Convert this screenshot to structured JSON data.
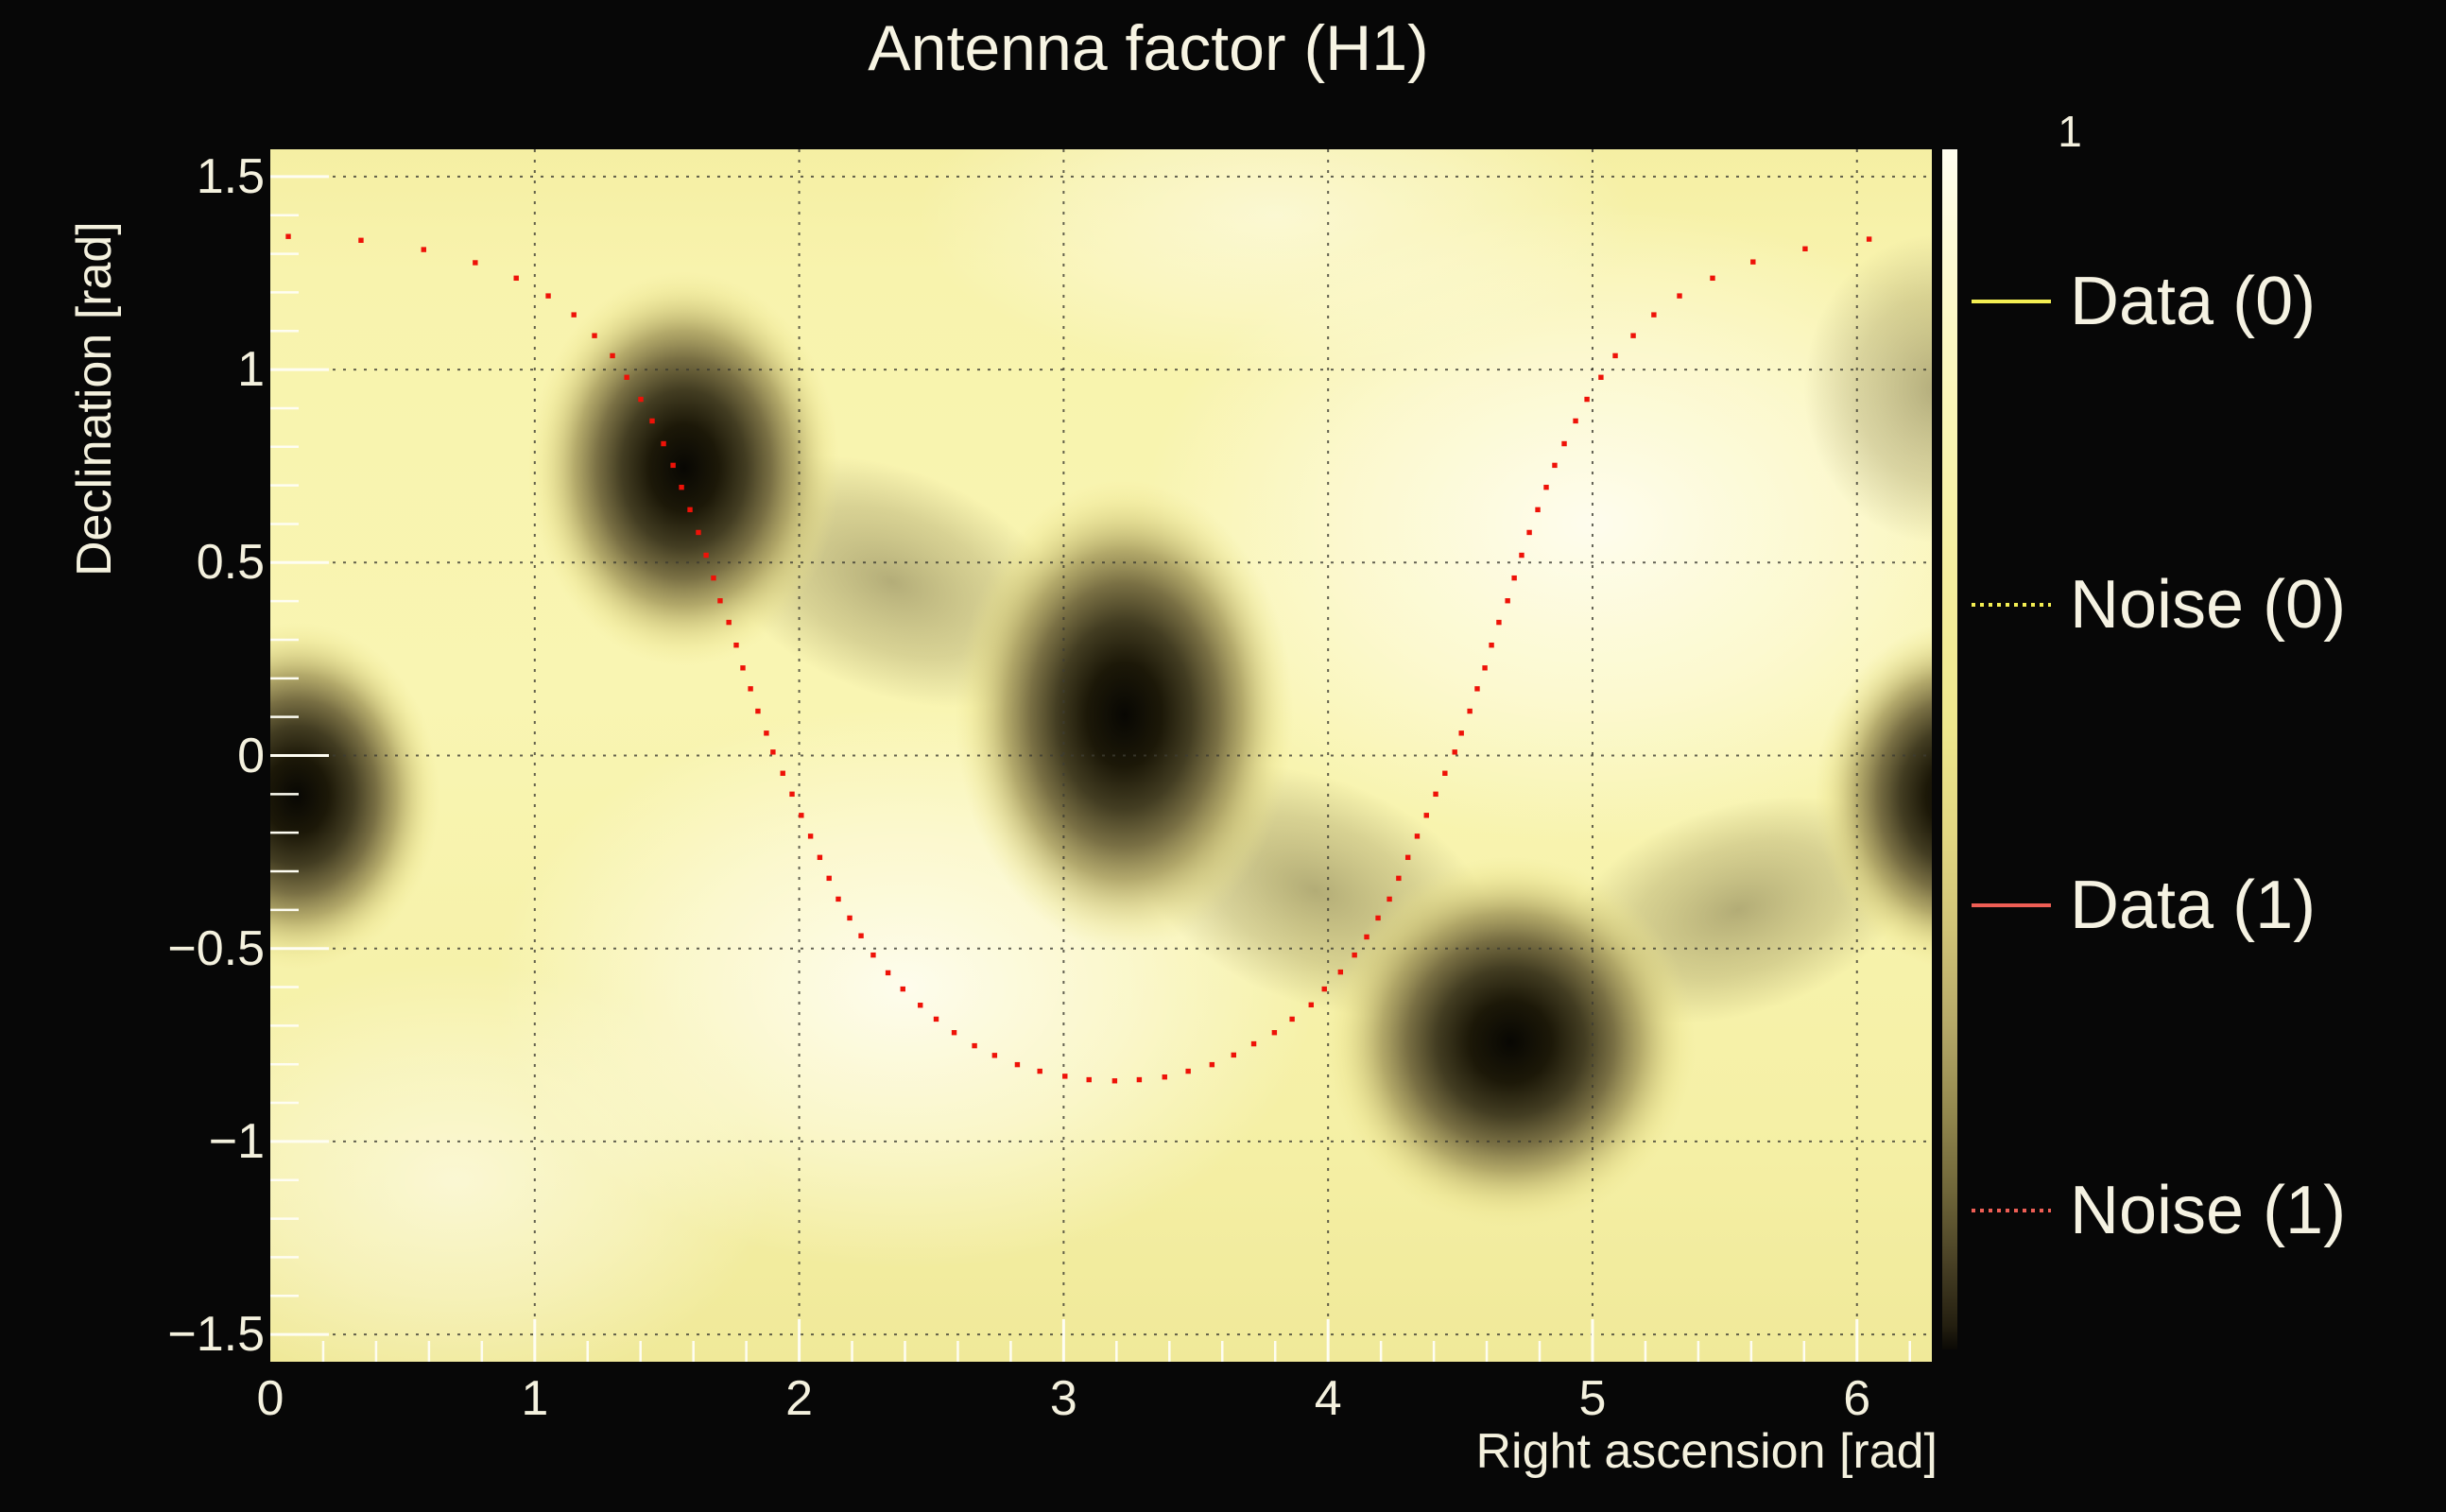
{
  "title": "Antenna factor (H1)",
  "colors": {
    "background": "#070707",
    "text": "#f4f1de",
    "data0_line": "#f3ee52",
    "data1_line": "#ee5e55",
    "noise1_points": "#ee1208",
    "gridline": "#3d3c32",
    "tick_marks": "#fefdf2",
    "heat_high": "#fffdf0",
    "heat_low": "#0b0905"
  },
  "legend": {
    "entries": [
      {
        "label": "Data (0)",
        "color": "#f3ee52",
        "style": "solid"
      },
      {
        "label": "Noise (0)",
        "color": "#f3ee52",
        "style": "dotted"
      },
      {
        "label": "Data (1)",
        "color": "#ee5e55",
        "style": "solid"
      },
      {
        "label": "Noise (1)",
        "color": "#ee5e55",
        "style": "dotted"
      }
    ]
  },
  "chart_data": {
    "type": "heatmap",
    "title": "Antenna factor (H1)",
    "xlabel": "Right ascension [rad]",
    "ylabel": "Declination [rad]",
    "xlim": [
      0,
      6.2832
    ],
    "ylim": [
      -1.5708,
      1.5708
    ],
    "x_ticks": [
      0,
      1,
      2,
      3,
      4,
      5,
      6
    ],
    "y_ticks": [
      1.5,
      1,
      0.5,
      0,
      -0.5,
      -1,
      -1.5
    ],
    "x_minor_step": 0.2,
    "y_minor_step": 0.1,
    "grid": true,
    "legend_position": "right",
    "z_max_label": "1",
    "colormap_description": "antenna factor: 1 = cream white, 0 = black",
    "minima_blobs": [
      {
        "ra": 0.1,
        "dec": -0.105,
        "rx": 0.54,
        "ry": 0.45
      },
      {
        "ra": 1.565,
        "dec": 0.744,
        "rx": 0.59,
        "ry": 0.51
      },
      {
        "ra": 3.23,
        "dec": 0.105,
        "rx": 0.64,
        "ry": 0.61
      },
      {
        "ra": 4.69,
        "dec": -0.742,
        "rx": 0.7,
        "ry": 0.48
      },
      {
        "ra": 6.38,
        "dec": -0.105,
        "rx": 0.54,
        "ry": 0.45
      }
    ],
    "bright_maxima": [
      {
        "ra": 2.4,
        "dec": -0.6,
        "rx": 1.55,
        "ry": 0.73,
        "op": 0.9
      },
      {
        "ra": 5.0,
        "dec": 0.6,
        "rx": 1.7,
        "ry": 0.83,
        "op": 0.9
      },
      {
        "ra": 0.7,
        "dec": -1.1,
        "rx": 1.2,
        "ry": 0.56,
        "op": 0.6
      },
      {
        "ra": 3.8,
        "dec": 1.4,
        "rx": 1.35,
        "ry": 0.42,
        "op": 0.55
      }
    ],
    "dark_bridges": [
      {
        "ra": 2.35,
        "dec": 0.45,
        "rx": 0.72,
        "ry": 0.29,
        "rot": 22
      },
      {
        "ra": 3.95,
        "dec": -0.35,
        "rx": 0.72,
        "ry": 0.29,
        "rot": 22
      },
      {
        "ra": 5.55,
        "dec": -0.4,
        "rx": 0.68,
        "ry": 0.27,
        "rot": -18
      },
      {
        "ra": 6.3,
        "dec": 0.95,
        "rx": 0.5,
        "ry": 0.4,
        "rot": 0
      }
    ],
    "noise_curve_series": "Noise (1)",
    "noise_curve_points": [
      [
        0.068,
        1.345
      ],
      [
        0.343,
        1.335
      ],
      [
        0.58,
        1.311
      ],
      [
        0.775,
        1.277
      ],
      [
        0.93,
        1.237
      ],
      [
        1.051,
        1.191
      ],
      [
        1.148,
        1.142
      ],
      [
        1.226,
        1.088
      ],
      [
        1.294,
        1.036
      ],
      [
        1.348,
        0.98
      ],
      [
        1.401,
        0.923
      ],
      [
        1.444,
        0.867
      ],
      [
        1.487,
        0.808
      ],
      [
        1.523,
        0.752
      ],
      [
        1.555,
        0.695
      ],
      [
        1.587,
        0.637
      ],
      [
        1.619,
        0.578
      ],
      [
        1.648,
        0.519
      ],
      [
        1.676,
        0.46
      ],
      [
        1.701,
        0.401
      ],
      [
        1.734,
        0.345
      ],
      [
        1.762,
        0.286
      ],
      [
        1.787,
        0.227
      ],
      [
        1.816,
        0.173
      ],
      [
        1.844,
        0.115
      ],
      [
        1.876,
        0.058
      ],
      [
        1.901,
        0.009
      ],
      [
        1.938,
        -0.046
      ],
      [
        1.973,
        -0.1
      ],
      [
        2.008,
        -0.155
      ],
      [
        2.043,
        -0.209
      ],
      [
        2.078,
        -0.264
      ],
      [
        2.113,
        -0.318
      ],
      [
        2.148,
        -0.372
      ],
      [
        2.191,
        -0.421
      ],
      [
        2.234,
        -0.467
      ],
      [
        2.28,
        -0.517
      ],
      [
        2.336,
        -0.563
      ],
      [
        2.392,
        -0.605
      ],
      [
        2.458,
        -0.647
      ],
      [
        2.518,
        -0.683
      ],
      [
        2.586,
        -0.718
      ],
      [
        2.663,
        -0.752
      ],
      [
        2.739,
        -0.777
      ],
      [
        2.825,
        -0.801
      ],
      [
        2.91,
        -0.818
      ],
      [
        3.005,
        -0.831
      ],
      [
        3.096,
        -0.84
      ],
      [
        3.193,
        -0.843
      ],
      [
        3.286,
        -0.84
      ],
      [
        3.382,
        -0.833
      ],
      [
        3.471,
        -0.818
      ],
      [
        3.561,
        -0.801
      ],
      [
        3.643,
        -0.776
      ],
      [
        3.719,
        -0.747
      ],
      [
        3.797,
        -0.718
      ],
      [
        3.864,
        -0.683
      ],
      [
        3.936,
        -0.646
      ],
      [
        3.986,
        -0.605
      ],
      [
        4.047,
        -0.561
      ],
      [
        4.1,
        -0.517
      ],
      [
        4.146,
        -0.47
      ],
      [
        4.189,
        -0.421
      ],
      [
        4.232,
        -0.372
      ],
      [
        4.267,
        -0.318
      ],
      [
        4.302,
        -0.264
      ],
      [
        4.337,
        -0.209
      ],
      [
        4.372,
        -0.155
      ],
      [
        4.407,
        -0.1
      ],
      [
        4.442,
        -0.046
      ],
      [
        4.479,
        0.009
      ],
      [
        4.504,
        0.058
      ],
      [
        4.536,
        0.115
      ],
      [
        4.564,
        0.173
      ],
      [
        4.593,
        0.227
      ],
      [
        4.618,
        0.286
      ],
      [
        4.646,
        0.345
      ],
      [
        4.679,
        0.401
      ],
      [
        4.704,
        0.46
      ],
      [
        4.732,
        0.519
      ],
      [
        4.761,
        0.578
      ],
      [
        4.793,
        0.637
      ],
      [
        4.825,
        0.695
      ],
      [
        4.857,
        0.752
      ],
      [
        4.893,
        0.808
      ],
      [
        4.936,
        0.867
      ],
      [
        4.979,
        0.923
      ],
      [
        5.032,
        0.98
      ],
      [
        5.086,
        1.036
      ],
      [
        5.154,
        1.088
      ],
      [
        5.232,
        1.142
      ],
      [
        5.329,
        1.191
      ],
      [
        5.454,
        1.237
      ],
      [
        5.607,
        1.279
      ],
      [
        5.804,
        1.313
      ],
      [
        6.046,
        1.338
      ]
    ]
  }
}
